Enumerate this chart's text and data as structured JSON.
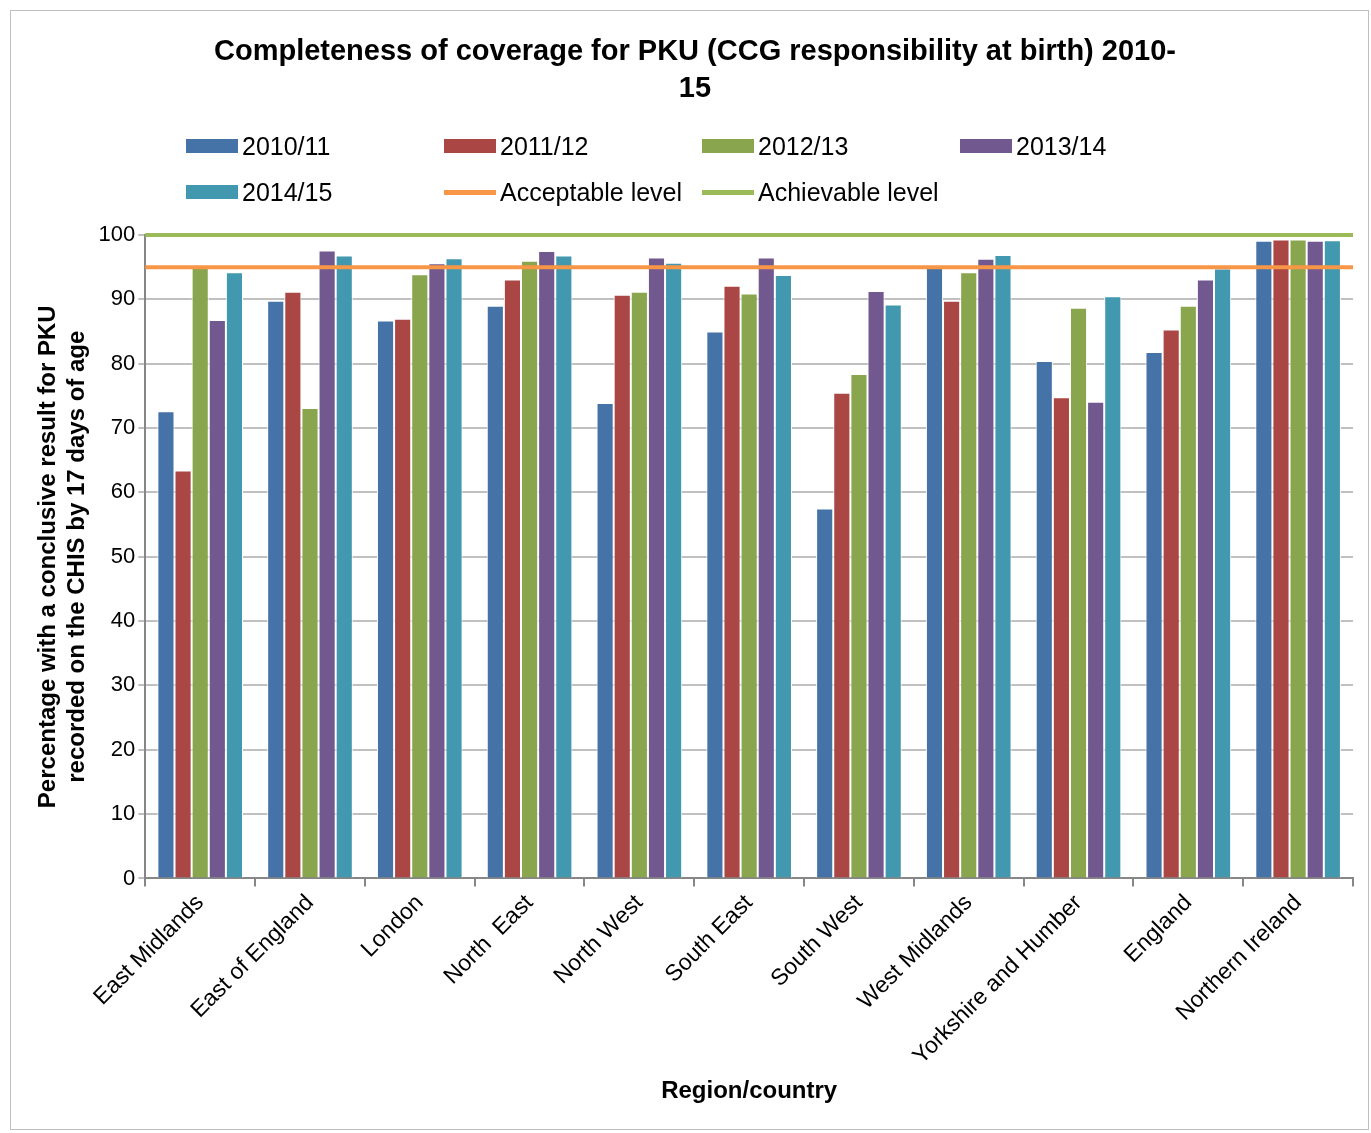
{
  "chart_data": {
    "type": "bar",
    "title": "Completeness of coverage for PKU (CCG responsibility at birth) 2010-15",
    "xlabel": "Region/country",
    "ylabel": "Percentage with a conclusive result for PKU\nrecorded on the CHIS by 17 days of age",
    "categories": [
      "East Midlands",
      "East of England",
      "London",
      "North  East",
      "North West",
      "South East",
      "South West",
      "West Midlands",
      "Yorkshire and Humber",
      "England",
      "Northern Ireland"
    ],
    "series": [
      {
        "name": "2010/11",
        "color": "#4572a7",
        "values": [
          72.6,
          89.8,
          86.7,
          89.0,
          73.9,
          85.0,
          57.5,
          95.0,
          80.4,
          81.8,
          99.1
        ]
      },
      {
        "name": "2011/12",
        "color": "#aa4643",
        "values": [
          63.4,
          91.2,
          87.0,
          93.1,
          90.7,
          92.1,
          75.5,
          89.8,
          74.8,
          85.3,
          99.3
        ]
      },
      {
        "name": "2012/13",
        "color": "#89a54e",
        "values": [
          95.0,
          73.1,
          93.9,
          96.0,
          91.2,
          90.9,
          78.4,
          94.2,
          88.7,
          89.0,
          99.3
        ]
      },
      {
        "name": "2013/14",
        "color": "#71588f",
        "values": [
          86.8,
          97.6,
          95.6,
          97.5,
          96.5,
          96.5,
          91.3,
          96.3,
          74.1,
          93.1,
          99.1
        ]
      },
      {
        "name": "2014/15",
        "color": "#4198af",
        "values": [
          94.2,
          96.8,
          96.4,
          96.8,
          95.7,
          93.8,
          89.2,
          96.9,
          90.5,
          94.8,
          99.2
        ]
      }
    ],
    "ref_lines": [
      {
        "axis": "y",
        "value": 95,
        "label": "Acceptable level",
        "color": "#f79646"
      },
      {
        "axis": "y",
        "value": 100,
        "label": "Achievable level",
        "color": "#9bbb59"
      }
    ],
    "ylim": [
      0,
      100
    ],
    "yticks": [
      0,
      10,
      20,
      30,
      40,
      50,
      60,
      70,
      80,
      90,
      100
    ],
    "grid": "y",
    "legend": "top"
  }
}
